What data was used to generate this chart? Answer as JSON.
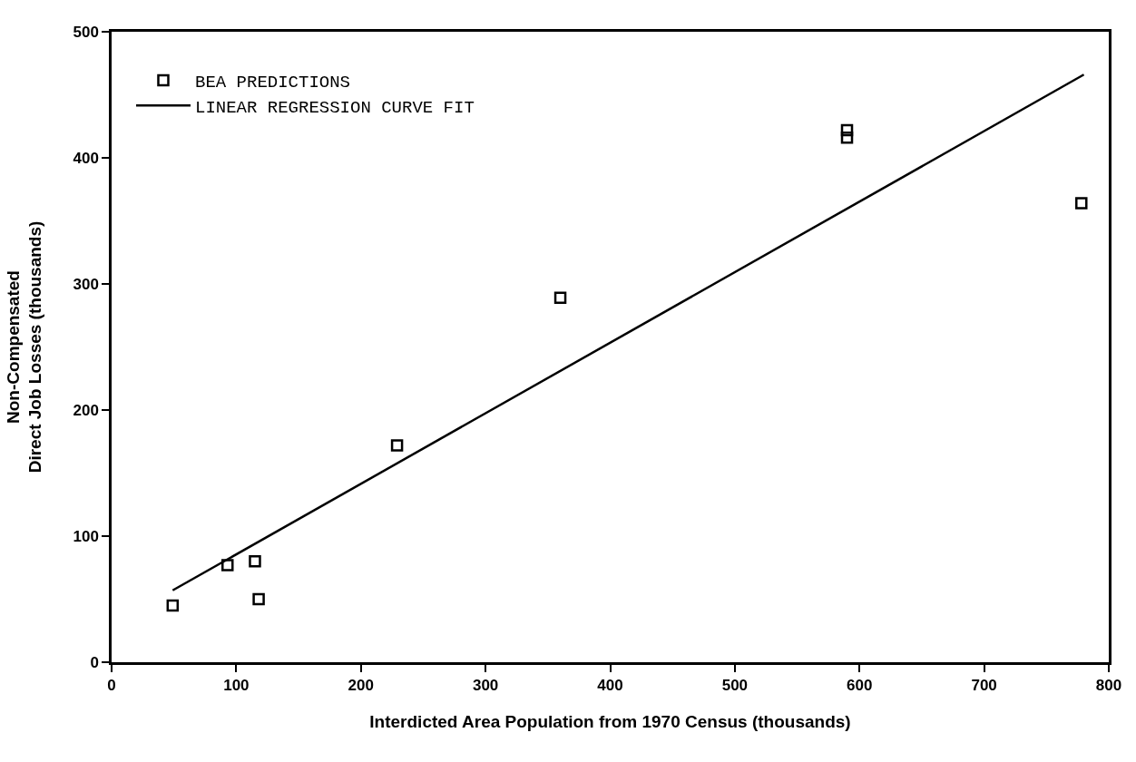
{
  "chart_data": {
    "type": "scatter",
    "xlabel": "Interdicted Area Population from 1970 Census (thousands)",
    "ylabel": "Non-Compensated\nDirect Job Losses (thousands)",
    "xlim": [
      0,
      800
    ],
    "ylim": [
      0,
      500
    ],
    "xticks": [
      0,
      100,
      200,
      300,
      400,
      500,
      600,
      700,
      800
    ],
    "yticks": [
      0,
      100,
      200,
      300,
      400,
      500
    ],
    "legend": "top left",
    "series": [
      {
        "name": "BEA PREDICTIONS",
        "marker": "square",
        "color": "#000000",
        "x": [
          49,
          93,
          115,
          118,
          229,
          360,
          590,
          590,
          778
        ],
        "values": [
          45,
          77,
          80,
          50,
          172,
          289,
          422,
          416,
          364
        ]
      },
      {
        "name": "LINEAR REGRESSION CURVE FIT",
        "type": "line",
        "marker": "none",
        "line_style": "solid",
        "color": "#000000",
        "x": [
          49,
          780
        ],
        "values": [
          57,
          466
        ]
      }
    ]
  }
}
